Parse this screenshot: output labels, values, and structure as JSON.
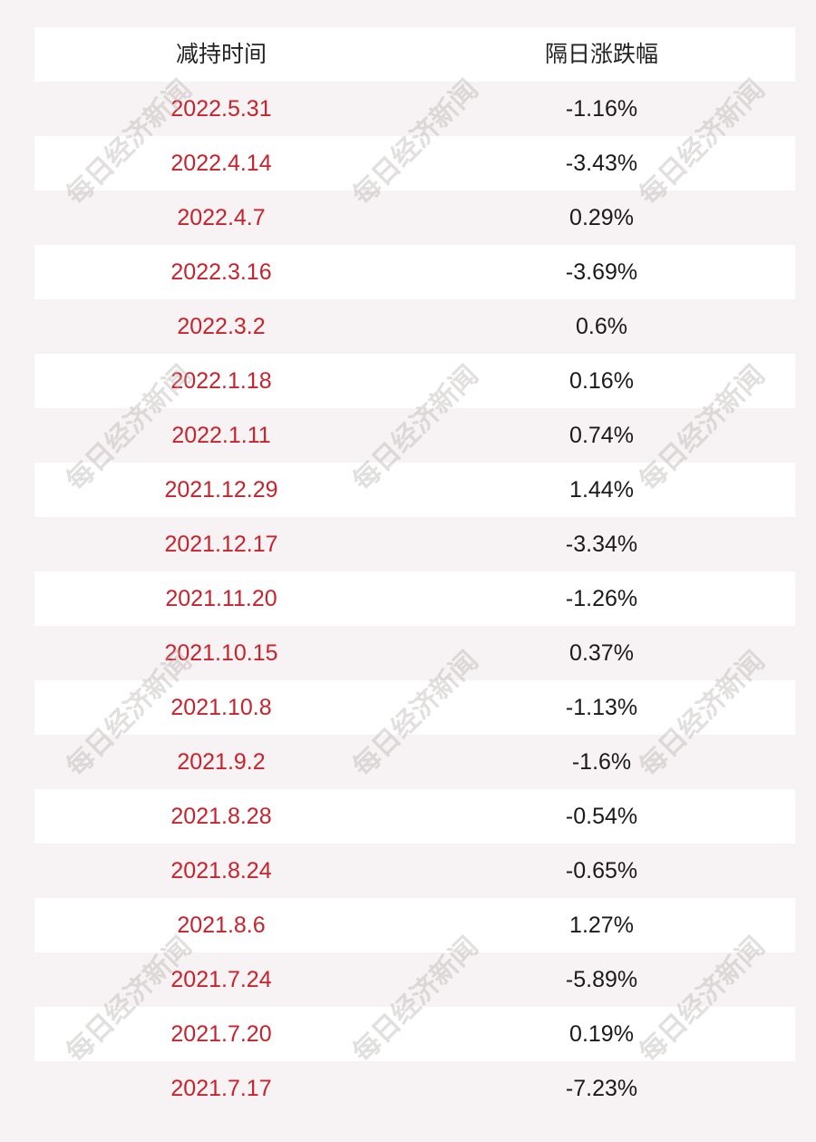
{
  "table": {
    "headers": {
      "date": "减持时间",
      "change": "隔日涨跌幅"
    },
    "rows": [
      {
        "date": "2022.5.31",
        "change": "-1.16%"
      },
      {
        "date": "2022.4.14",
        "change": "-3.43%"
      },
      {
        "date": "2022.4.7",
        "change": "0.29%"
      },
      {
        "date": "2022.3.16",
        "change": "-3.69%"
      },
      {
        "date": "2022.3.2",
        "change": "0.6%"
      },
      {
        "date": "2022.1.18",
        "change": "0.16%"
      },
      {
        "date": "2022.1.11",
        "change": "0.74%"
      },
      {
        "date": "2021.12.29",
        "change": "1.44%"
      },
      {
        "date": "2021.12.17",
        "change": "-3.34%"
      },
      {
        "date": "2021.11.20",
        "change": "-1.26%"
      },
      {
        "date": "2021.10.15",
        "change": "0.37%"
      },
      {
        "date": "2021.10.8",
        "change": "-1.13%"
      },
      {
        "date": "2021.9.2",
        "change": "-1.6%"
      },
      {
        "date": "2021.8.28",
        "change": "-0.54%"
      },
      {
        "date": "2021.8.24",
        "change": "-0.65%"
      },
      {
        "date": "2021.8.6",
        "change": "1.27%"
      },
      {
        "date": "2021.7.24",
        "change": "-5.89%"
      },
      {
        "date": "2021.7.20",
        "change": "0.19%"
      },
      {
        "date": "2021.7.17",
        "change": "-7.23%"
      }
    ]
  },
  "watermark": {
    "text": "每日经济新闻"
  },
  "colors": {
    "date_text": "#c8232c",
    "value_text": "#1a1a1a",
    "row_white": "#ffffff",
    "row_tint": "#f7f3f4"
  }
}
